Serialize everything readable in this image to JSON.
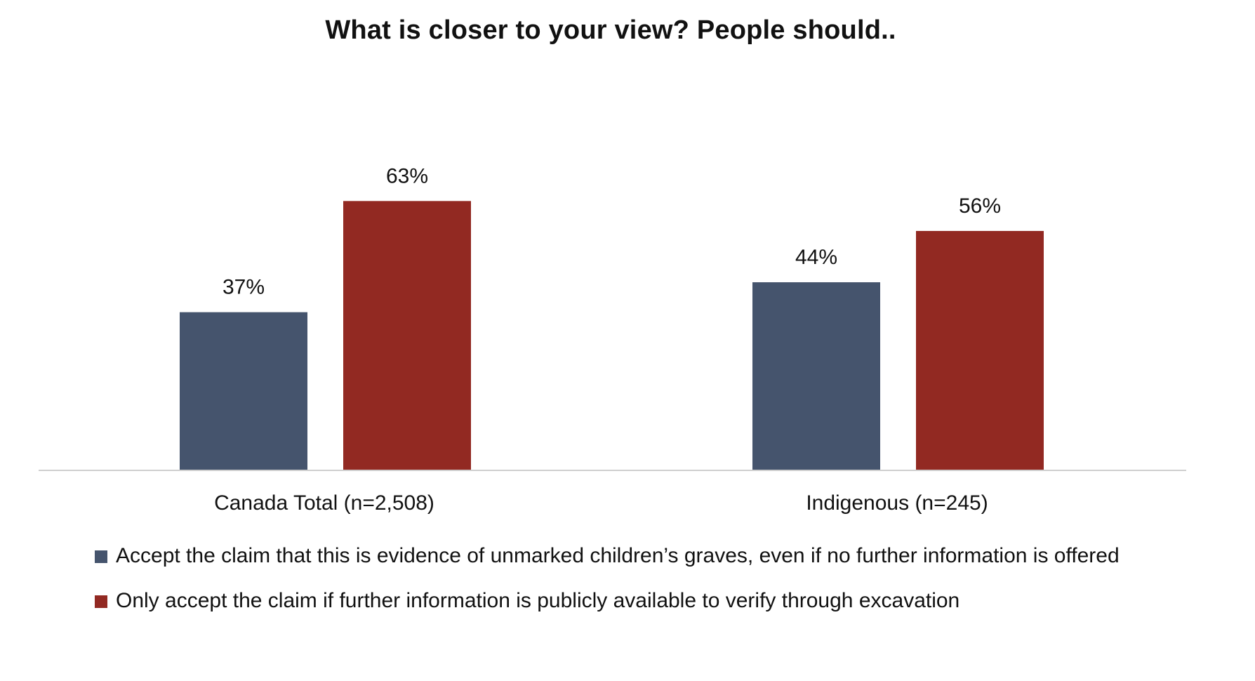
{
  "chart_data": {
    "type": "bar",
    "title": "What is closer to your view? People should..",
    "categories": [
      "Canada Total (n=2,508)",
      "Indigenous (n=245)"
    ],
    "series": [
      {
        "name": "Accept the claim that this is evidence of unmarked children’s graves, even if no further information is offered",
        "values": [
          37,
          44
        ],
        "labels": [
          "37%",
          "44%"
        ],
        "color": "#45546d"
      },
      {
        "name": "Only accept the claim if further information is publicly available to verify through excavation",
        "values": [
          63,
          56
        ],
        "labels": [
          "63%",
          "56%"
        ],
        "color": "#922922"
      }
    ],
    "ylim": [
      0,
      100
    ],
    "grid": false,
    "legend_position": "bottom"
  }
}
